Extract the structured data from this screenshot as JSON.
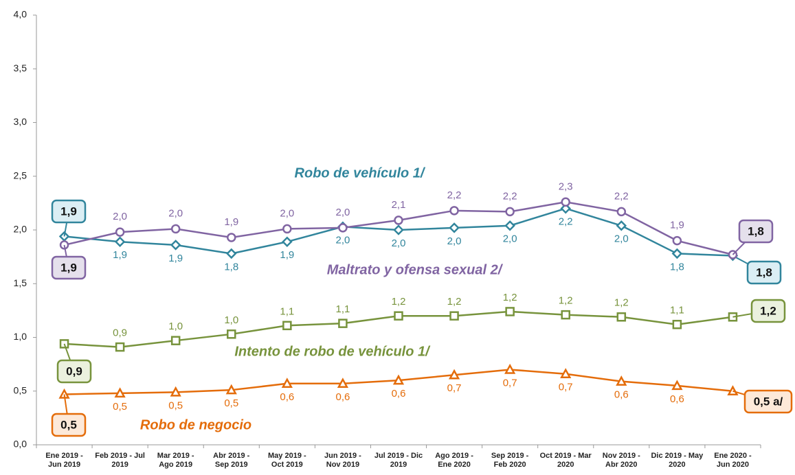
{
  "chart_data": {
    "type": "line",
    "categories": [
      "Ene 2019 - Jun 2019",
      "Feb 2019 - Jul 2019",
      "Mar 2019 - Ago 2019",
      "Abr 2019 - Sep 2019",
      "May 2019 - Oct 2019",
      "Jun 2019 - Nov 2019",
      "Jul 2019 - Dic 2019",
      "Ago 2019 - Ene 2020",
      "Sep 2019 - Feb 2020",
      "Oct 2019 - Mar 2020",
      "Nov 2019 - Abr 2020",
      "Dic 2019 - May 2020",
      "Ene 2020 - Jun 2020"
    ],
    "ylim": [
      0,
      4
    ],
    "yticks": [
      {
        "value": 0,
        "label": "0,0"
      },
      {
        "value": 0.5,
        "label": "0,5"
      },
      {
        "value": 1,
        "label": "1,0"
      },
      {
        "value": 1.5,
        "label": "1,5"
      },
      {
        "value": 2,
        "label": "2,0"
      },
      {
        "value": 2.5,
        "label": "2,5"
      },
      {
        "value": 3,
        "label": "3,0"
      },
      {
        "value": 3.5,
        "label": "3,5"
      },
      {
        "value": 4,
        "label": "4,0"
      }
    ],
    "grid": false,
    "series": [
      {
        "name": "Robo de vehículo 1/",
        "color": "#31859c",
        "marker": "diamond",
        "values": [
          1.94,
          1.89,
          1.86,
          1.78,
          1.89,
          2.03,
          2.0,
          2.02,
          2.04,
          2.2,
          2.04,
          1.78,
          1.76
        ],
        "value_labels": [
          "1,9",
          "1,9",
          "1,9",
          "1,8",
          "1,9",
          "2,0",
          "2,0",
          "2,0",
          "2,0",
          "2,2",
          "2,0",
          "1,8",
          "1,8"
        ]
      },
      {
        "name": "Maltrato y ofensa sexual 2/",
        "color": "#8064a2",
        "marker": "circle",
        "values": [
          1.86,
          1.98,
          2.01,
          1.93,
          2.01,
          2.02,
          2.09,
          2.18,
          2.17,
          2.26,
          2.17,
          1.9,
          1.77
        ],
        "value_labels": [
          "1,9",
          "2,0",
          "2,0",
          "1,9",
          "2,0",
          "2,0",
          "2,1",
          "2,2",
          "2,2",
          "2,3",
          "2,2",
          "1,9",
          "1,8"
        ]
      },
      {
        "name": "Intento de robo de vehículo 1/",
        "color": "#77933c",
        "marker": "square",
        "values": [
          0.94,
          0.91,
          0.97,
          1.03,
          1.11,
          1.13,
          1.2,
          1.2,
          1.24,
          1.21,
          1.19,
          1.12,
          1.19
        ],
        "value_labels": [
          "0,9",
          "0,9",
          "1,0",
          "1,0",
          "1,1",
          "1,1",
          "1,2",
          "1,2",
          "1,2",
          "1,2",
          "1,2",
          "1,1",
          "1,2"
        ]
      },
      {
        "name": "Robo de negocio",
        "color": "#e46c0a",
        "marker": "triangle",
        "values": [
          0.47,
          0.48,
          0.49,
          0.51,
          0.57,
          0.57,
          0.6,
          0.65,
          0.7,
          0.66,
          0.59,
          0.55,
          0.5
        ],
        "value_labels": [
          "0,5",
          "0,5",
          "0,5",
          "0,5",
          "0,6",
          "0,6",
          "0,6",
          "0,7",
          "0,7",
          "0,7",
          "0,6",
          "0,6",
          "0,5 a/"
        ]
      }
    ]
  }
}
